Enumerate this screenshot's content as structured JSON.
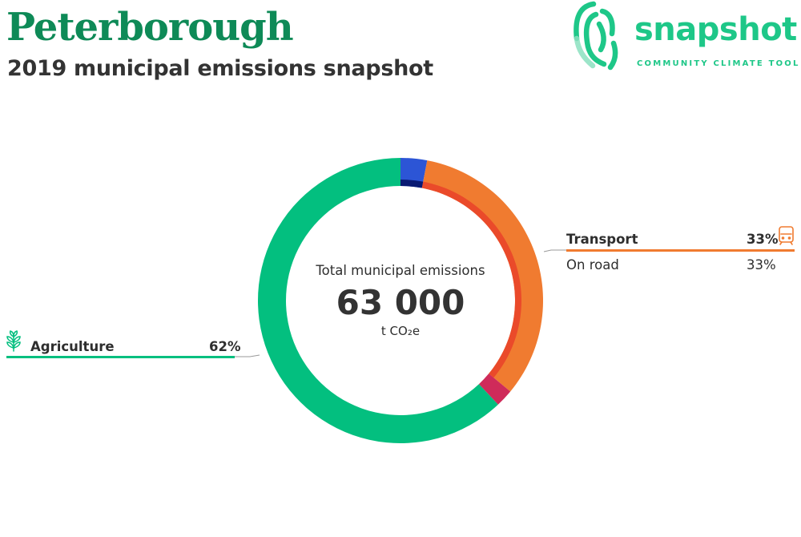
{
  "header": {
    "title": "Peterborough",
    "subtitle": "2019 municipal emissions snapshot"
  },
  "logo": {
    "word": "snapshot",
    "tagline": "COMMUNITY CLIMATE TOOL",
    "color": "#1ec788",
    "icon": "fingerprint-icon"
  },
  "center": {
    "label": "Total municipal emissions",
    "value": "63 000",
    "unit": "t CO₂e"
  },
  "chart_data": {
    "type": "pie",
    "variant": "donut",
    "total": 63000,
    "unit": "t CO₂e",
    "outer_ring": [
      {
        "name": "Agriculture",
        "percent": 62,
        "color": "#03bf7f"
      },
      {
        "name": "Transport",
        "percent": 33,
        "color": "#f07b30"
      }
    ],
    "inner_ring": [
      {
        "name": "On road",
        "percent": 33,
        "color": "#ea4a2a"
      }
    ],
    "unlabeled_segments": [
      {
        "ring": "outer",
        "color": "#2c55d6",
        "start_percent": 0,
        "percent": 3
      },
      {
        "ring": "inner",
        "color": "#091a73",
        "start_percent": 0,
        "percent": 3
      },
      {
        "ring": "outer",
        "color": "#cf2b5a",
        "start_percent": 36,
        "percent": 2
      }
    ],
    "labels": [
      {
        "name": "Transport",
        "value": "33%",
        "side": "right",
        "icon": "train-icon",
        "color": "#f07b30",
        "bold": true
      },
      {
        "name": "On road",
        "value": "33%",
        "side": "right",
        "bold": false
      },
      {
        "name": "Agriculture",
        "value": "62%",
        "side": "left",
        "icon": "wheat-icon",
        "color": "#03bf7f",
        "bold": true
      }
    ]
  }
}
